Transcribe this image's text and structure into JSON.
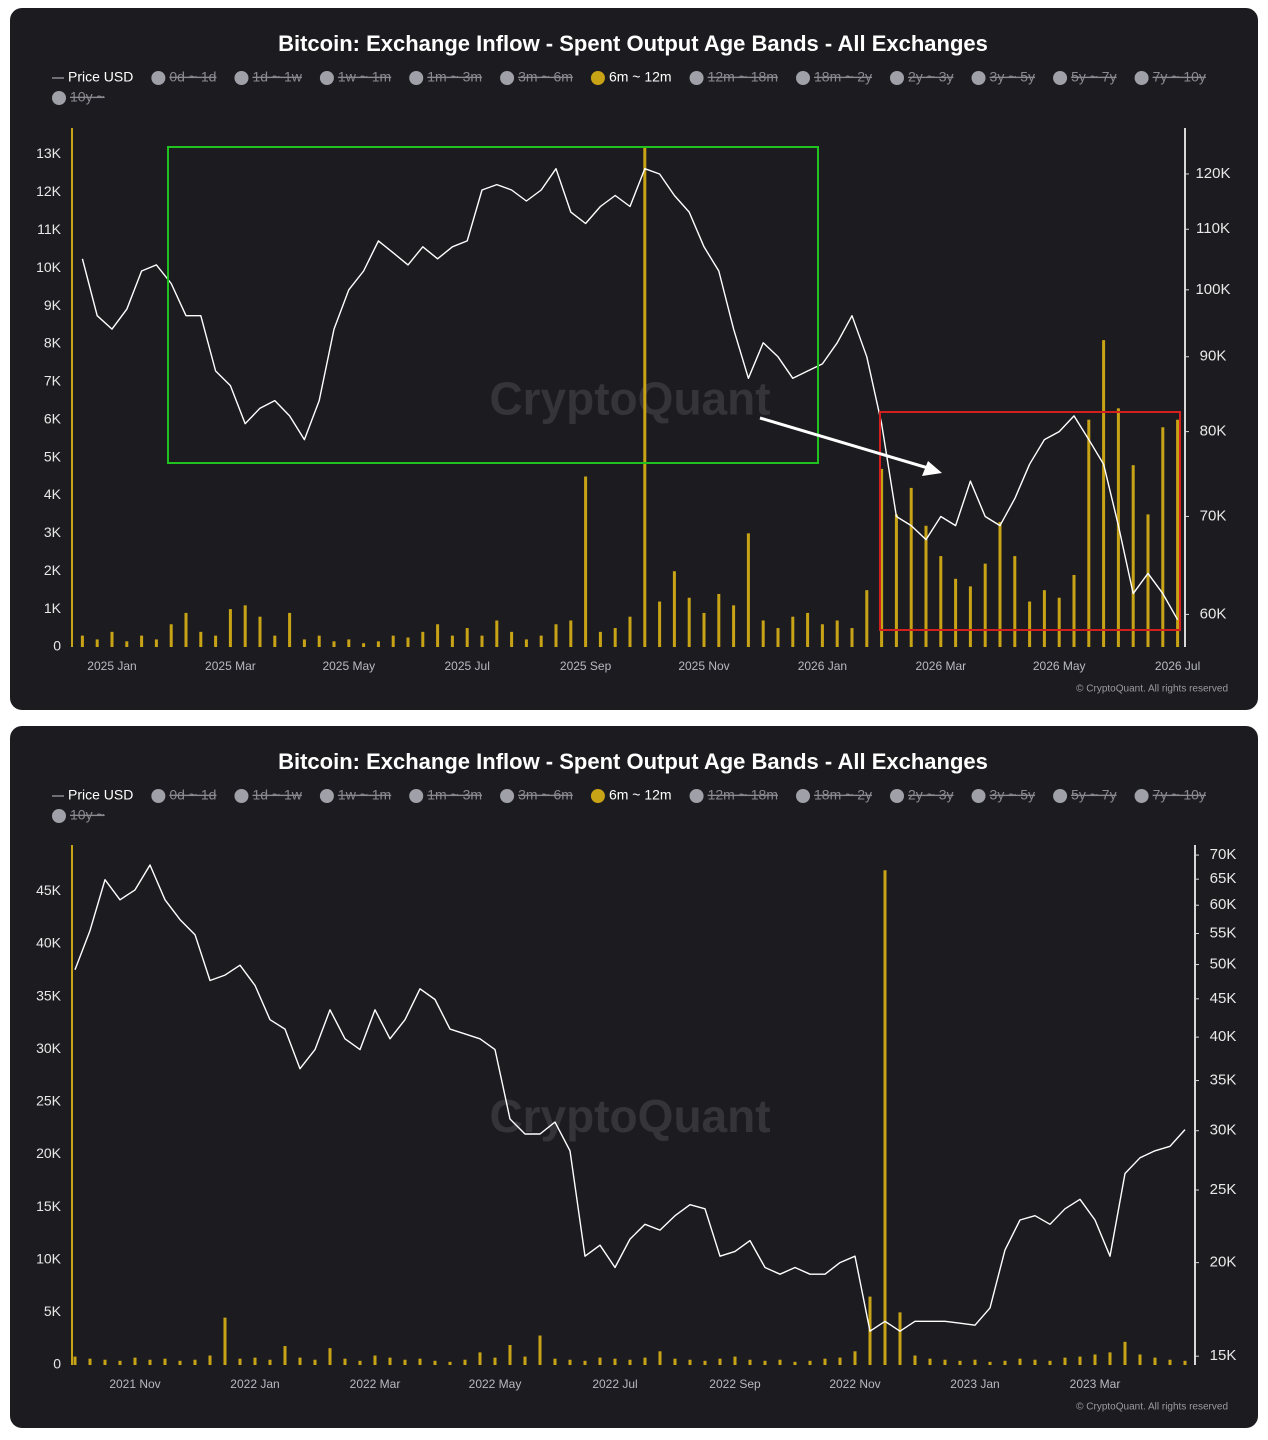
{
  "chart_data": [
    {
      "type": "combo",
      "title": "Bitcoin: Exchange Inflow - Spent Output Age Bands - All Exchanges",
      "watermark": "CryptoQuant",
      "copyright": "© CryptoQuant. All rights reserved",
      "categories": [
        null,
        null,
        "2025 Jan",
        null,
        null,
        null,
        null,
        null,
        null,
        null,
        "2025 Mar",
        null,
        null,
        null,
        null,
        null,
        null,
        null,
        "2025 May",
        null,
        null,
        null,
        null,
        null,
        null,
        null,
        "2025 Jul",
        null,
        null,
        null,
        null,
        null,
        null,
        null,
        "2025 Sep",
        null,
        null,
        null,
        null,
        null,
        null,
        null,
        "2025 Nov",
        null,
        null,
        null,
        null,
        null,
        null,
        null,
        "2026 Jan",
        null,
        null,
        null,
        null,
        null,
        null,
        null,
        "2026 Mar",
        null,
        null,
        null,
        null,
        null,
        null,
        null,
        "2026 May",
        null,
        null,
        null,
        null,
        null,
        null,
        null,
        "2026 Jul"
      ],
      "ylim": [
        0,
        13700
      ],
      "yticks": [
        0,
        {
          "value": 1000,
          "label": "1K"
        },
        {
          "value": 2000,
          "label": "2K"
        },
        {
          "value": 3000,
          "label": "3K"
        },
        {
          "value": 4000,
          "label": "4K"
        },
        {
          "value": 5000,
          "label": "5K"
        },
        {
          "value": 6000,
          "label": "6K"
        },
        {
          "value": 7000,
          "label": "7K"
        },
        {
          "value": 8000,
          "label": "8K"
        },
        {
          "value": 9000,
          "label": "9K"
        },
        {
          "value": 10000,
          "label": "10K"
        },
        {
          "value": 11000,
          "label": "11K"
        },
        {
          "value": 12000,
          "label": "12K"
        },
        {
          "value": 13000,
          "label": "13K"
        }
      ],
      "y2lim": [
        57000,
        129000
      ],
      "y2scale": "log",
      "y2ticks": [
        {
          "value": 60000,
          "label": "60K"
        },
        {
          "value": 70000,
          "label": "70K"
        },
        {
          "value": 80000,
          "label": "80K"
        },
        {
          "value": 90000,
          "label": "90K"
        },
        {
          "value": 100000,
          "label": "100K"
        },
        {
          "value": 110000,
          "label": "110K"
        },
        {
          "value": 120000,
          "label": "120K"
        }
      ],
      "series": [
        {
          "name": "Price USD",
          "color": "#ffffff",
          "mark": "line",
          "axis": "y2",
          "values": [
            105000,
            96000,
            94000,
            97000,
            103000,
            104000,
            101000,
            96000,
            96000,
            88000,
            86000,
            81000,
            83000,
            84000,
            82000,
            79000,
            84000,
            94000,
            100000,
            103000,
            108000,
            106000,
            104000,
            107000,
            105000,
            107000,
            108000,
            117000,
            118000,
            117000,
            115000,
            117000,
            121000,
            113000,
            111000,
            114000,
            116000,
            114000,
            121000,
            120000,
            116000,
            113000,
            107000,
            103000,
            94000,
            87000,
            92000,
            90000,
            87000,
            88000,
            89000,
            92000,
            96000,
            90000,
            81000,
            70000,
            69000,
            67500,
            70000,
            69000,
            74000,
            70000,
            69000,
            72000,
            76000,
            79000,
            80000,
            82000,
            79000,
            76000,
            69000,
            62000,
            64000,
            62000,
            59500
          ]
        },
        {
          "name": "0d ~ 1d",
          "color": "#a0a0a8",
          "hidden": true
        },
        {
          "name": "1d ~ 1w",
          "color": "#a0a0a8",
          "hidden": true
        },
        {
          "name": "1w ~ 1m",
          "color": "#a0a0a8",
          "hidden": true
        },
        {
          "name": "1m ~ 3m",
          "color": "#a0a0a8",
          "hidden": true
        },
        {
          "name": "3m ~ 6m",
          "color": "#a0a0a8",
          "hidden": true
        },
        {
          "name": "6m ~ 12m",
          "color": "#c9a316",
          "mark": "bar",
          "values": [
            300,
            200,
            400,
            150,
            300,
            200,
            600,
            900,
            400,
            300,
            1000,
            1100,
            800,
            300,
            900,
            200,
            300,
            150,
            200,
            100,
            150,
            300,
            250,
            400,
            600,
            300,
            500,
            300,
            700,
            400,
            200,
            300,
            600,
            700,
            4500,
            400,
            500,
            800,
            13200,
            1200,
            2000,
            1300,
            900,
            1400,
            1100,
            3000,
            700,
            500,
            800,
            900,
            600,
            700,
            500,
            1500,
            4700,
            3500,
            4200,
            3200,
            2400,
            1800,
            1600,
            2200,
            3300,
            2400,
            1200,
            1500,
            1300,
            1900,
            6000,
            8100,
            6300,
            4800,
            3500,
            5800,
            6000
          ]
        },
        {
          "name": "12m ~ 18m",
          "color": "#a0a0a8",
          "hidden": true
        },
        {
          "name": "18m ~ 2y",
          "color": "#a0a0a8",
          "hidden": true
        },
        {
          "name": "2y ~ 3y",
          "color": "#a0a0a8",
          "hidden": true
        },
        {
          "name": "3y ~ 5y",
          "color": "#a0a0a8",
          "hidden": true
        },
        {
          "name": "5y ~ 7y",
          "color": "#a0a0a8",
          "hidden": true
        },
        {
          "name": "7y ~ 10y",
          "color": "#a0a0a8",
          "hidden": true
        },
        {
          "name": "10y ~",
          "color": "#a0a0a8",
          "hidden": true
        }
      ]
    },
    {
      "type": "combo",
      "title": "Bitcoin: Exchange Inflow - Spent Output Age Bands - All Exchanges",
      "watermark": "CryptoQuant",
      "copyright": "© CryptoQuant. All rights reserved",
      "categories": [
        null,
        null,
        null,
        null,
        "2021 Nov",
        null,
        null,
        null,
        null,
        null,
        null,
        null,
        "2022 Jan",
        null,
        null,
        null,
        null,
        null,
        null,
        null,
        "2022 Mar",
        null,
        null,
        null,
        null,
        null,
        null,
        null,
        "2022 May",
        null,
        null,
        null,
        null,
        null,
        null,
        null,
        "2022 Jul",
        null,
        null,
        null,
        null,
        null,
        null,
        null,
        "2022 Sep",
        null,
        null,
        null,
        null,
        null,
        null,
        null,
        "2022 Nov",
        null,
        null,
        null,
        null,
        null,
        null,
        null,
        "2023 Jan",
        null,
        null,
        null,
        null,
        null,
        null,
        null,
        "2023 Mar",
        null,
        null,
        null,
        null,
        null,
        null
      ],
      "ylim": [
        0,
        49400
      ],
      "yticks": [
        0,
        {
          "value": 5000,
          "label": "5K"
        },
        {
          "value": 10000,
          "label": "10K"
        },
        {
          "value": 15000,
          "label": "15K"
        },
        {
          "value": 20000,
          "label": "20K"
        },
        {
          "value": 25000,
          "label": "25K"
        },
        {
          "value": 30000,
          "label": "30K"
        },
        {
          "value": 35000,
          "label": "35K"
        },
        {
          "value": 40000,
          "label": "40K"
        },
        {
          "value": 45000,
          "label": "45K"
        }
      ],
      "y2lim": [
        14600,
        72200
      ],
      "y2scale": "log",
      "y2ticks": [
        {
          "value": 15000,
          "label": "15K"
        },
        {
          "value": 20000,
          "label": "20K"
        },
        {
          "value": 25000,
          "label": "25K"
        },
        {
          "value": 30000,
          "label": "30K"
        },
        {
          "value": 35000,
          "label": "35K"
        },
        {
          "value": 40000,
          "label": "40K"
        },
        {
          "value": 45000,
          "label": "45K"
        },
        {
          "value": 50000,
          "label": "50K"
        },
        {
          "value": 55000,
          "label": "55K"
        },
        {
          "value": 60000,
          "label": "60K"
        },
        {
          "value": 65000,
          "label": "65K"
        },
        {
          "value": 70000,
          "label": "70K"
        }
      ],
      "series": [
        {
          "name": "Price USD",
          "color": "#ffffff",
          "mark": "line",
          "axis": "y2",
          "values": [
            49200,
            55500,
            64900,
            61000,
            62900,
            67900,
            61000,
            57400,
            54800,
            47600,
            48400,
            49900,
            46900,
            42200,
            41000,
            36300,
            38500,
            43500,
            39800,
            38500,
            43500,
            39800,
            42200,
            46400,
            44900,
            41000,
            40400,
            39800,
            38500,
            31100,
            29700,
            29700,
            30800,
            28200,
            20400,
            21100,
            19700,
            21500,
            22500,
            22100,
            23100,
            23900,
            23600,
            20400,
            20700,
            21400,
            19700,
            19300,
            19700,
            19300,
            19300,
            20000,
            20400,
            16200,
            16700,
            16200,
            16700,
            16700,
            16700,
            16600,
            16500,
            17400,
            20800,
            22800,
            23100,
            22500,
            23600,
            24300,
            22800,
            20400,
            26300,
            27600,
            28200,
            28600,
            30100
          ]
        },
        {
          "name": "0d ~ 1d",
          "color": "#a0a0a8",
          "hidden": true
        },
        {
          "name": "1d ~ 1w",
          "color": "#a0a0a8",
          "hidden": true
        },
        {
          "name": "1w ~ 1m",
          "color": "#a0a0a8",
          "hidden": true
        },
        {
          "name": "1m ~ 3m",
          "color": "#a0a0a8",
          "hidden": true
        },
        {
          "name": "3m ~ 6m",
          "color": "#a0a0a8",
          "hidden": true
        },
        {
          "name": "6m ~ 12m",
          "color": "#c9a316",
          "mark": "bar",
          "values": [
            800,
            600,
            500,
            400,
            700,
            500,
            600,
            400,
            500,
            900,
            4500,
            600,
            700,
            500,
            1800,
            700,
            500,
            1600,
            600,
            400,
            900,
            700,
            500,
            600,
            400,
            300,
            500,
            1200,
            700,
            1900,
            800,
            2800,
            600,
            500,
            400,
            700,
            600,
            500,
            700,
            1300,
            600,
            500,
            400,
            600,
            800,
            500,
            400,
            500,
            300,
            400,
            600,
            700,
            1300,
            6500,
            47000,
            5000,
            900,
            600,
            500,
            400,
            500,
            300,
            400,
            600,
            500,
            400,
            700,
            800,
            1000,
            1200,
            2200,
            1000,
            700,
            500,
            400
          ]
        },
        {
          "name": "12m ~ 18m",
          "color": "#a0a0a8",
          "hidden": true
        },
        {
          "name": "18m ~ 2y",
          "color": "#a0a0a8",
          "hidden": true
        },
        {
          "name": "2y ~ 3y",
          "color": "#a0a0a8",
          "hidden": true
        },
        {
          "name": "3y ~ 5y",
          "color": "#a0a0a8",
          "hidden": true
        },
        {
          "name": "5y ~ 7y",
          "color": "#a0a0a8",
          "hidden": true
        },
        {
          "name": "7y ~ 10y",
          "color": "#a0a0a8",
          "hidden": true
        },
        {
          "name": "10y ~",
          "color": "#a0a0a8",
          "hidden": true
        }
      ]
    }
  ]
}
